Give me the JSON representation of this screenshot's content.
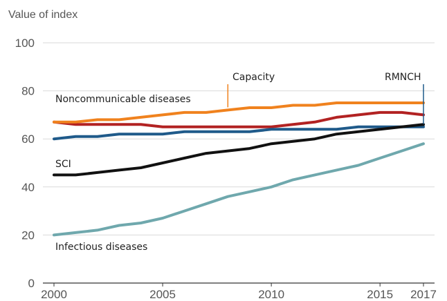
{
  "chart_data": {
    "type": "line",
    "ylabel": "Value of index",
    "xlabel": "",
    "ylim": [
      0,
      100
    ],
    "xlim": [
      2000,
      2017
    ],
    "yticks": [
      0,
      20,
      40,
      60,
      80,
      100
    ],
    "xticks": [
      2000,
      2005,
      2010,
      2015,
      2017
    ],
    "grid": "horizontal",
    "x": [
      2000,
      2001,
      2002,
      2003,
      2004,
      2005,
      2006,
      2007,
      2008,
      2009,
      2010,
      2011,
      2012,
      2013,
      2014,
      2015,
      2016,
      2017
    ],
    "series": [
      {
        "name": "Noncommunicable diseases",
        "color": "#b22222",
        "values": [
          67,
          66,
          66,
          66,
          66,
          65,
          65,
          65,
          65,
          65,
          65,
          66,
          67,
          69,
          70,
          71,
          71,
          70
        ]
      },
      {
        "name": "Capacity",
        "color": "#f0821e",
        "values": [
          67,
          67,
          68,
          68,
          69,
          70,
          71,
          71,
          72,
          73,
          73,
          74,
          74,
          75,
          75,
          75,
          75,
          75
        ]
      },
      {
        "name": "RMNCH",
        "color": "#1f5a8a",
        "values": [
          60,
          61,
          61,
          62,
          62,
          62,
          63,
          63,
          63,
          63,
          64,
          64,
          64,
          64,
          65,
          65,
          65,
          65
        ]
      },
      {
        "name": "SCI",
        "color": "#111111",
        "values": [
          45,
          45,
          46,
          47,
          48,
          50,
          52,
          54,
          55,
          56,
          58,
          59,
          60,
          62,
          63,
          64,
          65,
          66
        ]
      },
      {
        "name": "Infectious diseases",
        "color": "#6fa8ad",
        "values": [
          20,
          21,
          22,
          24,
          25,
          27,
          30,
          33,
          36,
          38,
          40,
          43,
          45,
          47,
          49,
          52,
          55,
          58
        ]
      }
    ]
  }
}
